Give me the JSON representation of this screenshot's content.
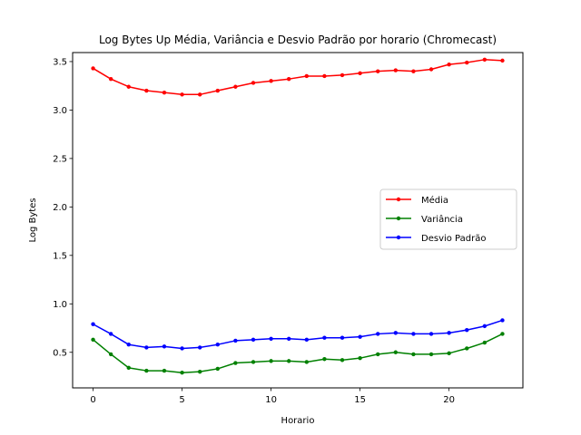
{
  "chart_data": {
    "type": "line",
    "title": "Log Bytes Up Média, Variância e Desvio Padrão por horario (Chromecast)",
    "xlabel": "Horario",
    "ylabel": "Log Bytes",
    "xlim": [
      -1.15,
      24.15
    ],
    "ylim": [
      0.133,
      3.593
    ],
    "xticks": [
      0,
      5,
      10,
      15,
      20
    ],
    "yticks": [
      0.5,
      1.0,
      1.5,
      2.0,
      2.5,
      3.0,
      3.5
    ],
    "ytick_labels": [
      "0.5",
      "1.0",
      "1.5",
      "2.0",
      "2.5",
      "3.0",
      "3.5"
    ],
    "legend_position": "center-right",
    "grid": false,
    "x": [
      0,
      1,
      2,
      3,
      4,
      5,
      6,
      7,
      8,
      9,
      10,
      11,
      12,
      13,
      14,
      15,
      16,
      17,
      18,
      19,
      20,
      21,
      22,
      23
    ],
    "series": [
      {
        "name": "Média",
        "color": "#ff0000",
        "values": [
          3.43,
          3.32,
          3.24,
          3.2,
          3.18,
          3.16,
          3.16,
          3.2,
          3.24,
          3.28,
          3.3,
          3.32,
          3.35,
          3.35,
          3.36,
          3.38,
          3.4,
          3.41,
          3.4,
          3.42,
          3.47,
          3.49,
          3.52,
          3.51
        ]
      },
      {
        "name": "Variância",
        "color": "#008000",
        "values": [
          0.63,
          0.48,
          0.34,
          0.31,
          0.31,
          0.29,
          0.3,
          0.33,
          0.39,
          0.4,
          0.41,
          0.41,
          0.4,
          0.43,
          0.42,
          0.44,
          0.48,
          0.5,
          0.48,
          0.48,
          0.49,
          0.54,
          0.6,
          0.69
        ]
      },
      {
        "name": "Desvio Padrão",
        "color": "#0000ff",
        "values": [
          0.79,
          0.69,
          0.58,
          0.55,
          0.56,
          0.54,
          0.55,
          0.58,
          0.62,
          0.63,
          0.64,
          0.64,
          0.63,
          0.65,
          0.65,
          0.66,
          0.69,
          0.7,
          0.69,
          0.69,
          0.7,
          0.73,
          0.77,
          0.83
        ]
      }
    ]
  }
}
